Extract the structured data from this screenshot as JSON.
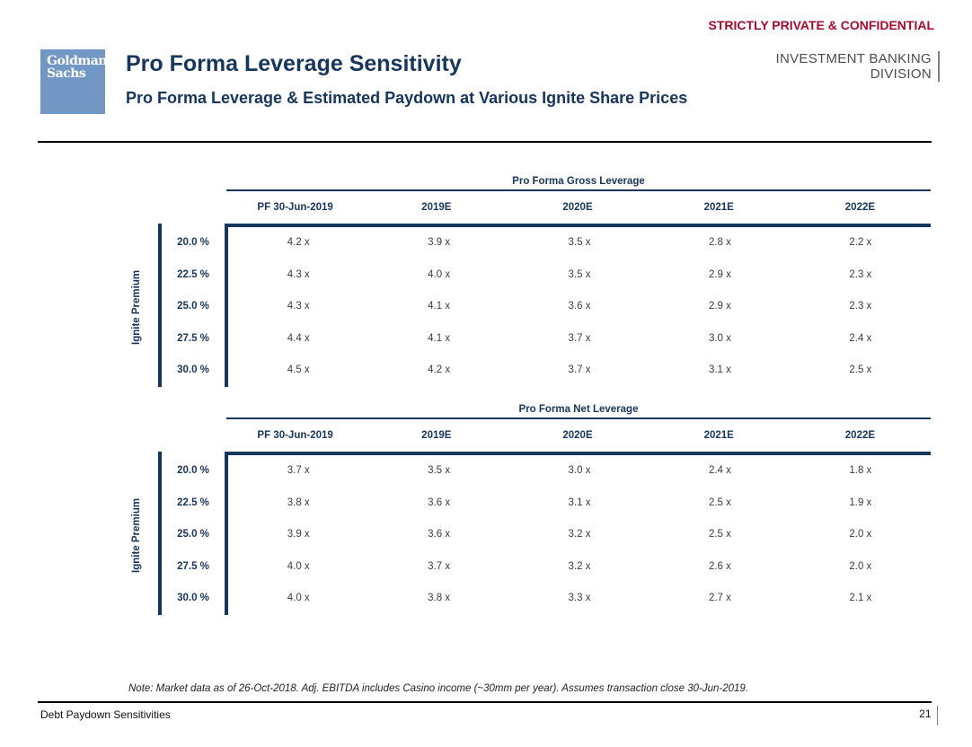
{
  "page": {
    "confidential": "STRICTLY PRIVATE & CONFIDENTIAL",
    "logo": {
      "line1": "Goldman",
      "line2": "Sachs"
    },
    "title": "Pro Forma Leverage Sensitivity",
    "subtitle": "Pro Forma Leverage & Estimated Paydown at Various Ignite Share Prices",
    "division": {
      "line1": "INVESTMENT BANKING",
      "line2": "DIVISION"
    },
    "note": "Note: Market data as of 26-Oct-2018. Adj. EBITDA includes Casino income (~30mm per year). Assumes transaction close 30-Jun-2019.",
    "footer": {
      "left": "Debt Paydown Sensitivities",
      "page_number": "21"
    }
  },
  "colors": {
    "navy": "#17365D",
    "red": "#A50A2D",
    "logo_blue": "#7397C4",
    "division_gray": "#4D4D4D"
  },
  "tables": [
    {
      "title": "Pro Forma Gross Leverage",
      "row_axis_label": "Ignite Premium",
      "columns": [
        "PF 30-Jun-2019",
        "2019E",
        "2020E",
        "2021E",
        "2022E"
      ],
      "rows": [
        {
          "label": "20.0 %",
          "values": [
            "4.2 x",
            "3.9 x",
            "3.5 x",
            "2.8 x",
            "2.2 x"
          ]
        },
        {
          "label": "22.5 %",
          "values": [
            "4.3 x",
            "4.0 x",
            "3.5 x",
            "2.9 x",
            "2.3 x"
          ]
        },
        {
          "label": "25.0 %",
          "values": [
            "4.3 x",
            "4.1 x",
            "3.6 x",
            "2.9 x",
            "2.3 x"
          ]
        },
        {
          "label": "27.5 %",
          "values": [
            "4.4 x",
            "4.1 x",
            "3.7 x",
            "3.0 x",
            "2.4 x"
          ]
        },
        {
          "label": "30.0 %",
          "values": [
            "4.5 x",
            "4.2 x",
            "3.7 x",
            "3.1 x",
            "2.5 x"
          ]
        }
      ]
    },
    {
      "title": "Pro Forma Net Leverage",
      "row_axis_label": "Ignite Premium",
      "columns": [
        "PF 30-Jun-2019",
        "2019E",
        "2020E",
        "2021E",
        "2022E"
      ],
      "rows": [
        {
          "label": "20.0 %",
          "values": [
            "3.7 x",
            "3.5 x",
            "3.0 x",
            "2.4 x",
            "1.8 x"
          ]
        },
        {
          "label": "22.5 %",
          "values": [
            "3.8 x",
            "3.6 x",
            "3.1 x",
            "2.5 x",
            "1.9 x"
          ]
        },
        {
          "label": "25.0 %",
          "values": [
            "3.9 x",
            "3.6 x",
            "3.2 x",
            "2.5 x",
            "2.0 x"
          ]
        },
        {
          "label": "27.5 %",
          "values": [
            "4.0 x",
            "3.7 x",
            "3.2 x",
            "2.6 x",
            "2.0 x"
          ]
        },
        {
          "label": "30.0 %",
          "values": [
            "4.0 x",
            "3.8 x",
            "3.3 x",
            "2.7 x",
            "2.1 x"
          ]
        }
      ]
    }
  ]
}
